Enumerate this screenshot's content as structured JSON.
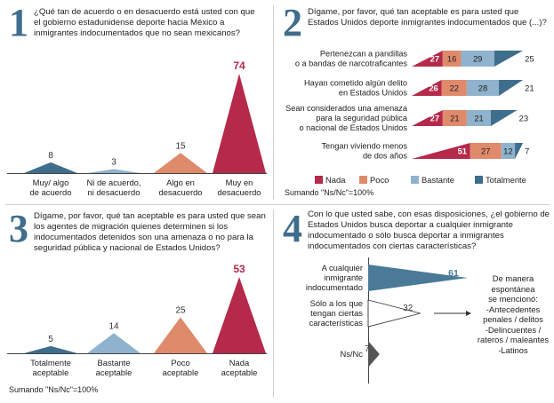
{
  "panels": [
    {
      "number": "1",
      "question": "¿Qué tan de acuerdo o en desacuerdo está usted con que el gobierno estadunidense deporte hacia México a inmigrantes indocumentados que no sean mexicanos?"
    },
    {
      "number": "2",
      "question": "Dígame, por favor, qué tan aceptable es para usted que Estados Unidos deporte inmigrantes indocumentados que (...)?"
    },
    {
      "number": "3",
      "question": "Dígame, por favor, qué tan aceptable es para usted que sean los agentes de migración quienes determinen si los indocumentados detenidos son una amenaza o no para la seguridad pública y nacional de Estados Unidos?"
    },
    {
      "number": "4",
      "question": "Con lo que usted sabe, con esas disposiciones, ¿el gobierno de Estados Unidos busca deportar a cualquier inmigrante indocumentado o sólo busca deportar a inmigrantes indocumentados con ciertas características?"
    }
  ],
  "footnote": "Sumando \"Ns/Nc\"=100%",
  "note4": [
    "De manera",
    "espontánea",
    "se mencionó:",
    "-Antecedentes",
    "penales / delitos",
    "-Delincuentes /",
    "rateros / maleantes",
    "-Latinos"
  ],
  "colors": {
    "blue_dark": "#3f6d8c",
    "blue_light": "#8fb3cc",
    "salmon": "#e08a6c",
    "red": "#b5294a",
    "panel4_bar": "#4b7a99"
  },
  "chart_data": [
    {
      "type": "bar",
      "categories": [
        "Muy/ algo\nde acuerdo",
        "Ni de acuerdo,\nni desacuerdo",
        "Algo en\ndesacuerdo",
        "Muy en\ndesacuerdo"
      ],
      "values": [
        8,
        3,
        15,
        74
      ],
      "colors": [
        "#3f6d8c",
        "#8fb3cc",
        "#e08a6c",
        "#b5294a"
      ]
    },
    {
      "type": "bar",
      "stacked": true,
      "categories": [
        "Pertenezcan a pandillas\no a bandas de narcotraficantes",
        "Hayan cometido algún delito\nen Estados Unidos",
        "Sean considerados una amenaza\npara la seguridad pública\no nacional de Estados Unidos",
        "Tengan viviendo menos\nde dos años"
      ],
      "series": [
        {
          "name": "Nada",
          "values": [
            27,
            26,
            27,
            51
          ]
        },
        {
          "name": "Poco",
          "values": [
            16,
            22,
            21,
            27
          ]
        },
        {
          "name": "Bastante",
          "values": [
            29,
            28,
            21,
            12
          ]
        },
        {
          "name": "Totalmente",
          "values": [
            25,
            21,
            23,
            7
          ]
        }
      ],
      "colors": [
        "#b5294a",
        "#e08a6c",
        "#8fb3cc",
        "#3f6d8c"
      ]
    },
    {
      "type": "bar",
      "categories": [
        "Totalmente\naceptable",
        "Bastante\naceptable",
        "Poco\naceptable",
        "Nada\naceptable"
      ],
      "values": [
        5,
        14,
        25,
        53
      ],
      "colors": [
        "#3f6d8c",
        "#8fb3cc",
        "#e08a6c",
        "#b5294a"
      ]
    },
    {
      "type": "bar",
      "orientation": "horizontal",
      "categories": [
        "A cualquier\ninmigrante\nindocumentado",
        "Sólo a los que\ntengan ciertas\ncaracterísticas",
        "Ns/Nc"
      ],
      "values": [
        61,
        32,
        7
      ],
      "colors": [
        "#4b7a99",
        "#ffffff",
        "#555555"
      ]
    }
  ]
}
